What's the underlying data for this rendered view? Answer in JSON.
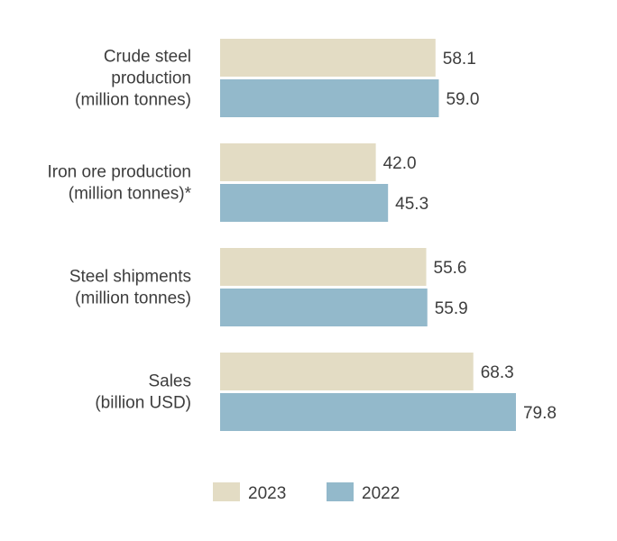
{
  "chart_data": {
    "type": "bar",
    "orientation": "horizontal",
    "title": "",
    "xlabel": "",
    "ylabel": "",
    "xlim": [
      0,
      80
    ],
    "grid": false,
    "legend_position": "bottom",
    "categories": [
      [
        "Crude steel",
        "production",
        "(million tonnes)"
      ],
      [
        "Iron ore production",
        "(million tonnes)*"
      ],
      [
        "Steel shipments",
        "(million tonnes)"
      ],
      [
        "Sales",
        "(billion USD)"
      ]
    ],
    "series": [
      {
        "name": "2023",
        "color": "#e3dcc4",
        "values": [
          58.1,
          42.0,
          55.6,
          68.3
        ]
      },
      {
        "name": "2022",
        "color": "#93b9cb",
        "values": [
          59.0,
          45.3,
          55.9,
          79.8
        ]
      }
    ]
  }
}
